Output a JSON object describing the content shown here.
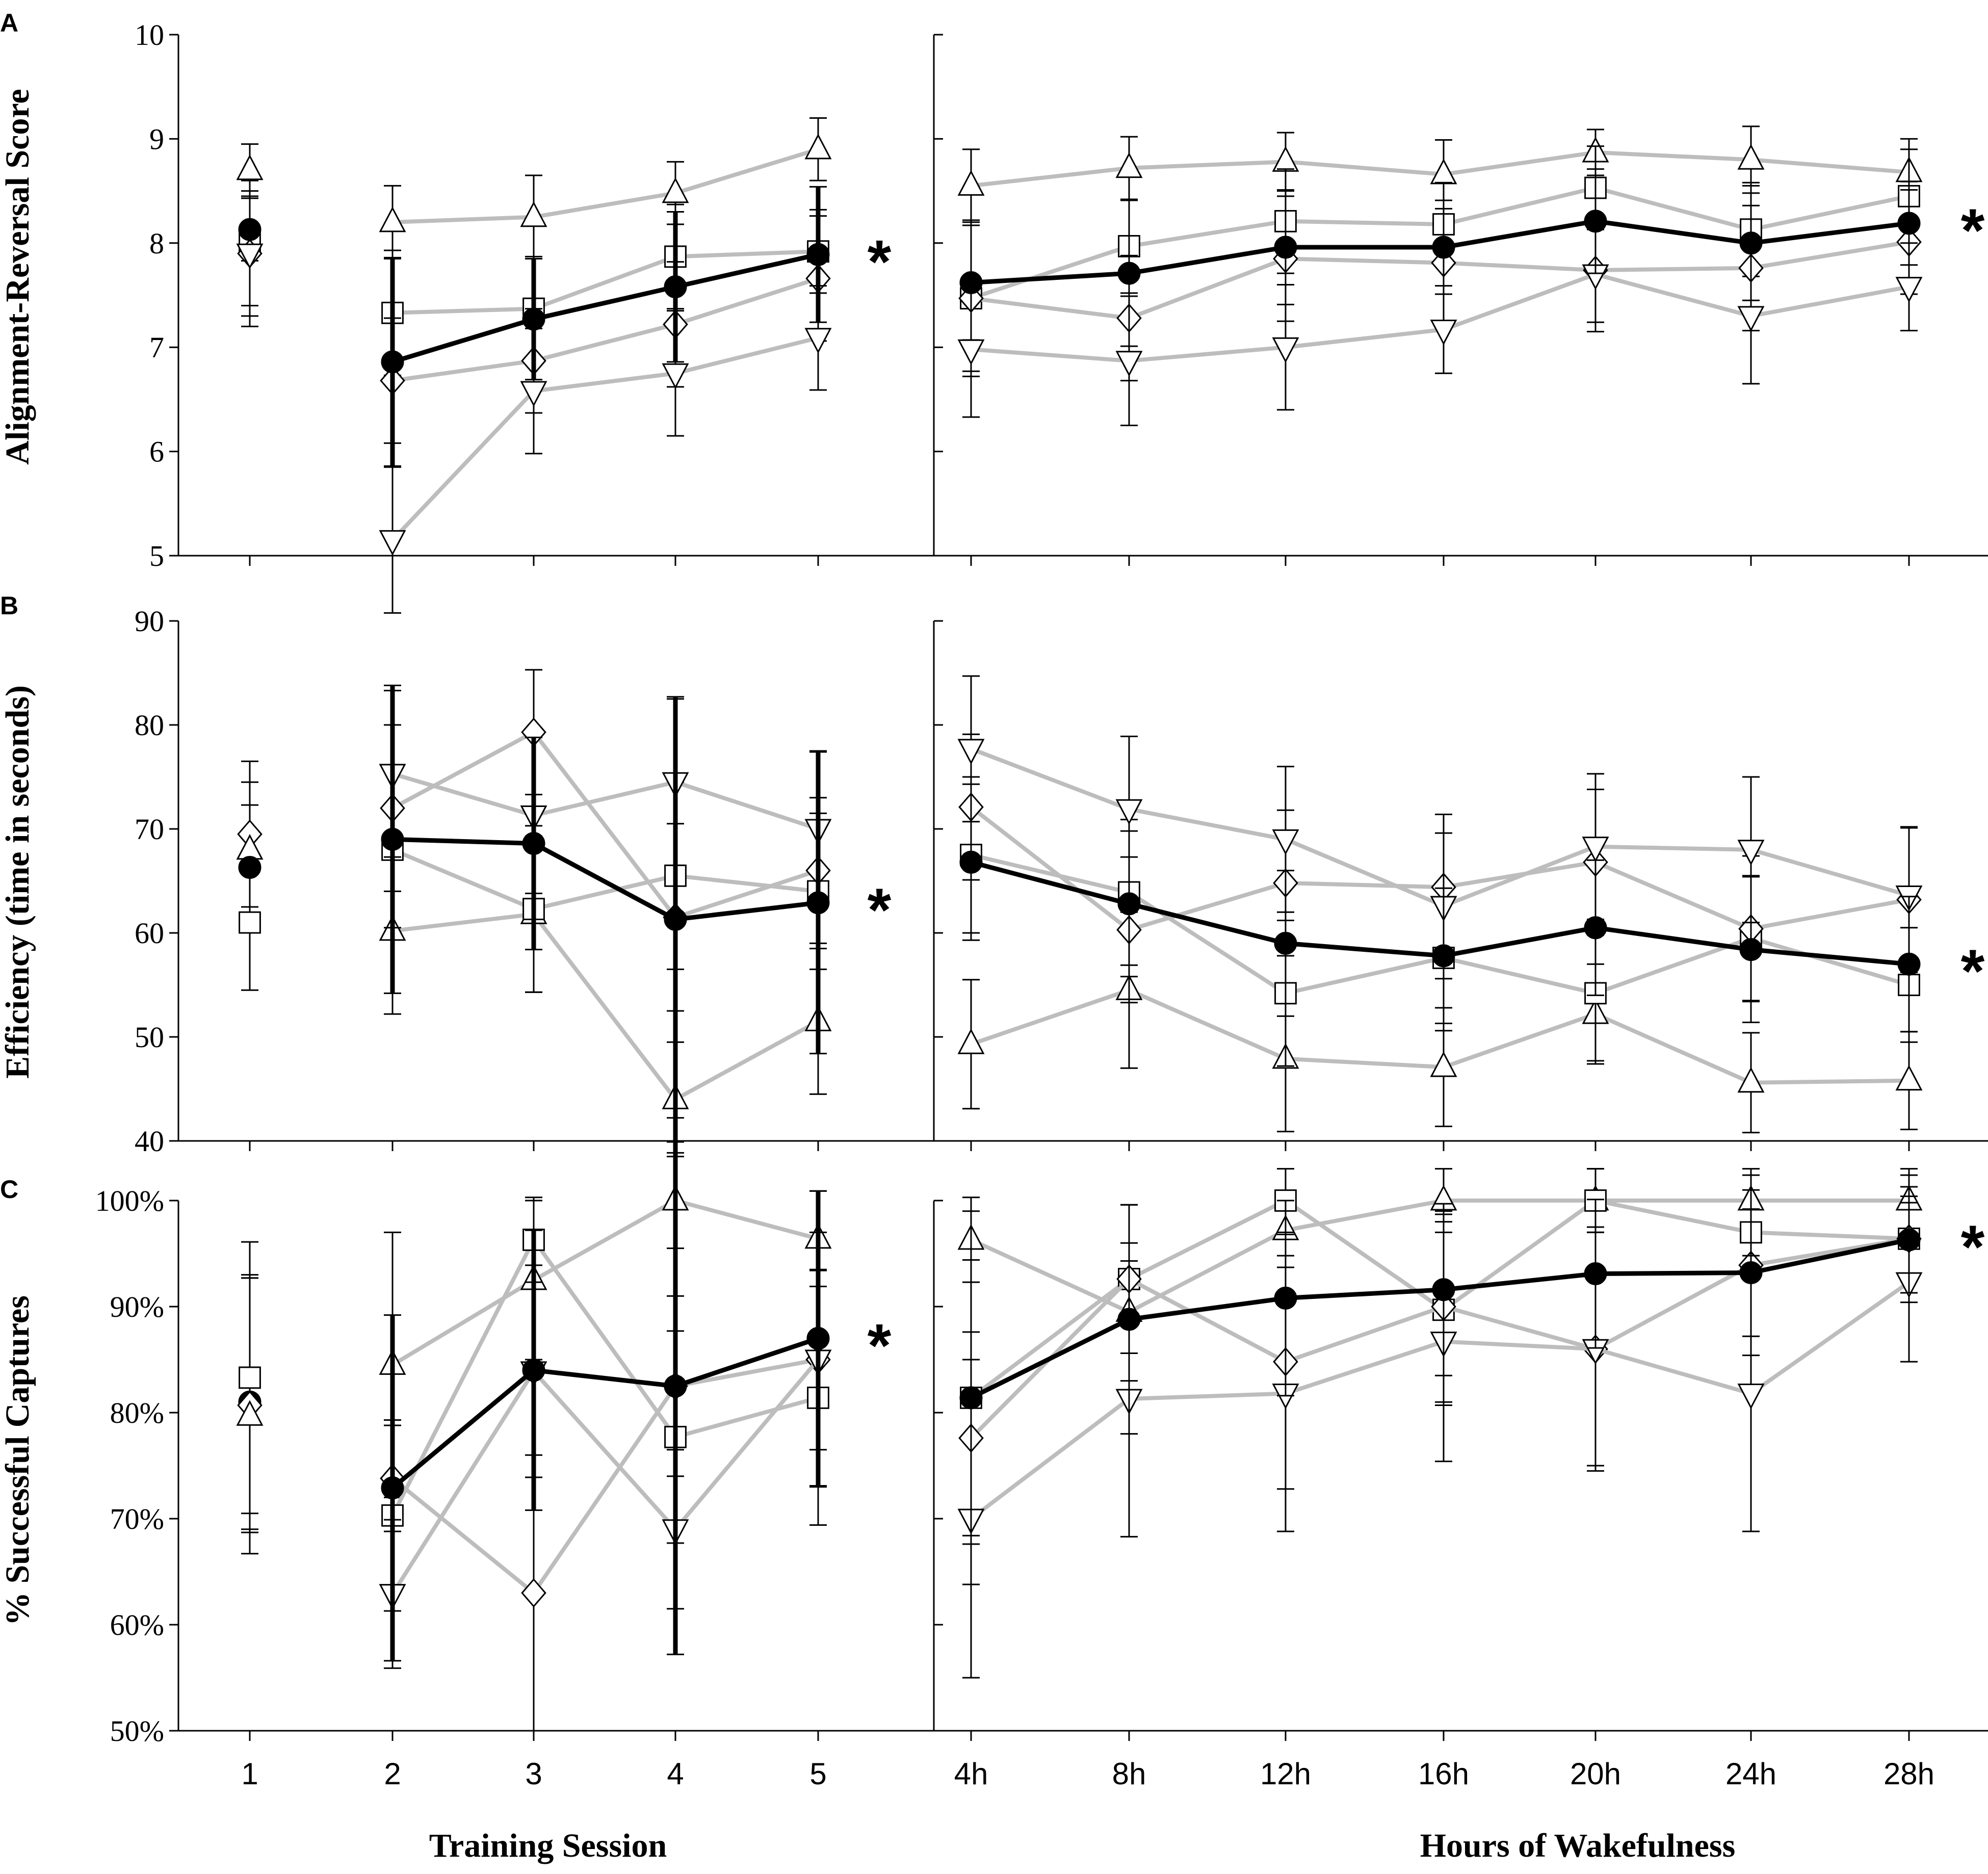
{
  "colors": {
    "mean": "#000000",
    "group": "#bdbdbd",
    "marker_fill": "#ffffff",
    "axis": "#000000"
  },
  "x_axis": {
    "training_label": "Training Session",
    "wake_label": "Hours of Wakefulness",
    "training_ticks": [
      "1",
      "2",
      "3",
      "4",
      "5"
    ],
    "wake_ticks": [
      "4h",
      "8h",
      "12h",
      "16h",
      "20h",
      "24h",
      "28h"
    ]
  },
  "chart_data": [
    {
      "type": "line",
      "panel": "A",
      "ylabel": "Alignment-Reversal Score",
      "ylim": [
        5,
        10
      ],
      "yticks": [
        "5",
        "6",
        "7",
        "8",
        "9",
        "10"
      ],
      "significance": [
        "*",
        "*"
      ],
      "baseline": [
        {
          "marker": "up",
          "value": 8.7,
          "err": 0.25
        },
        {
          "marker": "square",
          "value": 8.0,
          "err": 0.6
        },
        {
          "marker": "diamond",
          "value": 7.9,
          "err": 0.6
        },
        {
          "marker": "down",
          "value": 7.9,
          "err": 0.7
        },
        {
          "marker": "circle",
          "value": 8.13,
          "err": 0.3
        }
      ],
      "training": {
        "categories": [
          "2",
          "3",
          "4",
          "5"
        ],
        "series": [
          {
            "name": "up",
            "values": [
              8.2,
              8.25,
              8.48,
              8.9
            ],
            "err": [
              0.35,
              0.4,
              0.3,
              0.3
            ]
          },
          {
            "name": "square",
            "values": [
              7.33,
              7.37,
              7.87,
              7.92
            ],
            "err": [
              0.6,
              0.5,
              0.5,
              0.4
            ]
          },
          {
            "name": "diamond",
            "values": [
              6.68,
              6.87,
              7.22,
              7.66
            ],
            "err": [
              0.6,
              0.5,
              0.6,
              0.6
            ]
          },
          {
            "name": "down",
            "values": [
              5.15,
              6.58,
              6.75,
              7.09
            ],
            "err": [
              0.7,
              0.6,
              0.6,
              0.5
            ]
          },
          {
            "name": "mean",
            "values": [
              6.86,
              7.27,
              7.58,
              7.89
            ],
            "err": [
              1.0,
              0.58,
              0.72,
              0.65
            ]
          }
        ]
      },
      "wake": {
        "categories": [
          "4h",
          "8h",
          "12h",
          "16h",
          "20h",
          "24h",
          "28h"
        ],
        "series": [
          {
            "name": "up",
            "values": [
              8.55,
              8.72,
              8.78,
              8.66,
              8.87,
              8.8,
              8.68
            ],
            "err": [
              0.35,
              0.3,
              0.28,
              0.33,
              0.22,
              0.32,
              0.32
            ]
          },
          {
            "name": "square",
            "values": [
              7.47,
              7.97,
              8.21,
              8.18,
              8.53,
              8.13,
              8.45
            ],
            "err": [
              0.7,
              0.45,
              0.5,
              0.4,
              0.4,
              0.45,
              0.45
            ]
          },
          {
            "name": "diamond",
            "values": [
              7.47,
              7.28,
              7.85,
              7.81,
              7.74,
              7.76,
              8.01
            ],
            "err": [
              0.75,
              0.6,
              0.6,
              0.6,
              0.5,
              0.6,
              0.5
            ]
          },
          {
            "name": "down",
            "values": [
              6.98,
              6.87,
              7.0,
              7.17,
              7.7,
              7.3,
              7.58
            ],
            "err": [
              0.65,
              0.62,
              0.6,
              0.42,
              0.55,
              0.65,
              0.42
            ]
          },
          {
            "name": "mean",
            "values": [
              7.62,
              7.71,
              7.96,
              7.96,
              8.21,
              8.0,
              8.19
            ],
            "err": [
              0.55,
              0.7,
              0.55,
              0.45,
              0.5,
              0.55,
              0.4
            ]
          }
        ]
      }
    },
    {
      "type": "line",
      "panel": "B",
      "ylabel": "Efficiency (time in seconds)",
      "ylim": [
        40,
        90
      ],
      "yticks": [
        "40",
        "50",
        "60",
        "70",
        "80",
        "90"
      ],
      "significance": [
        "*",
        "*"
      ],
      "baseline": [
        {
          "marker": "diamond",
          "value": 69.5,
          "err": 7.0
        },
        {
          "marker": "up",
          "value": 68.0,
          "err": 6.5
        },
        {
          "marker": "circle",
          "value": 66.3,
          "err": 6.0
        },
        {
          "marker": "square",
          "value": 61.0,
          "err": 6.5
        }
      ],
      "training": {
        "categories": [
          "2",
          "3",
          "4",
          "5"
        ],
        "series": [
          {
            "name": "up",
            "values": [
              60.2,
              61.8,
              44.0,
              51.5
            ],
            "err": [
              8.0,
              7.5,
              5.5,
              7.0
            ]
          },
          {
            "name": "square",
            "values": [
              68.0,
              62.3,
              65.5,
              64.0
            ],
            "err": [
              7.5,
              8.0,
              9.0,
              7.5
            ]
          },
          {
            "name": "diamond",
            "values": [
              72.0,
              79.3,
              61.5,
              66.0
            ],
            "err": [
              8.0,
              6.0,
              9.0,
              7.0
            ]
          },
          {
            "name": "down",
            "values": [
              75.3,
              71.3,
              74.5,
              70.0
            ],
            "err": [
              8.0,
              7.5,
              8.0,
              7.5
            ]
          },
          {
            "name": "mean",
            "values": [
              69.0,
              68.6,
              61.3,
              62.9
            ],
            "err": [
              14.8,
              10.2,
              21.4,
              14.5
            ]
          }
        ]
      },
      "wake": {
        "categories": [
          "4h",
          "8h",
          "12h",
          "16h",
          "20h",
          "24h",
          "28h"
        ],
        "series": [
          {
            "name": "up",
            "values": [
              49.3,
              54.5,
              47.9,
              47.1,
              52.2,
              45.6,
              45.8
            ],
            "err": [
              6.2,
              7.5,
              7.0,
              5.7,
              4.8,
              4.8,
              4.7
            ]
          },
          {
            "name": "square",
            "values": [
              67.5,
              63.9,
              54.2,
              57.6,
              54.2,
              59.5,
              55.0
            ],
            "err": [
              7.5,
              7.0,
              7.0,
              7.0,
              6.5,
              6.0,
              5.5
            ]
          },
          {
            "name": "diamond",
            "values": [
              72.1,
              60.3,
              64.8,
              64.4,
              66.8,
              60.4,
              63.2
            ],
            "err": [
              7.0,
              7.0,
              7.0,
              7.0,
              7.0,
              7.0,
              7.0
            ]
          },
          {
            "name": "down",
            "values": [
              77.7,
              71.9,
              69.0,
              62.6,
              68.3,
              68.0,
              63.6
            ],
            "err": [
              7.0,
              7.0,
              7.0,
              7.0,
              7.0,
              7.0,
              6.5
            ]
          },
          {
            "name": "mean",
            "values": [
              66.8,
              62.8,
              59.0,
              57.8,
              60.5,
              58.4,
              57.0
            ],
            "err": [
              7.5,
              7.0,
              7.0,
              6.5,
              6.5,
              7.0,
              6.5
            ]
          }
        ]
      }
    },
    {
      "type": "line",
      "panel": "C",
      "ylabel": "% Successful Captures",
      "ylim": [
        50,
        100
      ],
      "yticks": [
        "50%",
        "60%",
        "70%",
        "80%",
        "90%",
        "100%"
      ],
      "significance": [
        "*",
        "*"
      ],
      "baseline": [
        {
          "marker": "square",
          "value": 83.3,
          "err": 12.8
        },
        {
          "marker": "circle",
          "value": 81.0,
          "err": 12.0
        },
        {
          "marker": "diamond",
          "value": 80.7,
          "err": 12.0
        },
        {
          "marker": "up",
          "value": 79.7,
          "err": 13.0
        }
      ],
      "training": {
        "categories": [
          "2",
          "3",
          "4",
          "5"
        ],
        "series": [
          {
            "name": "up",
            "values": [
              84.5,
              92.5,
              100.0,
              96.4
            ],
            "err": [
              12.5,
              7.5,
              4.5,
              4.5
            ]
          },
          {
            "name": "square",
            "values": [
              70.3,
              96.3,
              77.7,
              81.4
            ],
            "err": [
              9.0,
              4.0,
              10.0,
              12.0
            ]
          },
          {
            "name": "diamond",
            "values": [
              73.8,
              63.0,
              82.5,
              85.0
            ],
            "err": [
              5.0,
              13.0,
              8.5,
              12.0
            ]
          },
          {
            "name": "down",
            "values": [
              62.9,
              83.9,
              69.0,
              85.0
            ],
            "err": [
              7.0,
              10.0,
              7.5,
              8.5
            ]
          },
          {
            "name": "mean",
            "values": [
              72.9,
              84.0,
              82.5,
              87.0
            ],
            "err": [
              16.3,
              13.2,
              25.3,
              13.9
            ]
          }
        ]
      },
      "wake": {
        "categories": [
          "4h",
          "8h",
          "12h",
          "16h",
          "20h",
          "24h",
          "28h"
        ],
        "series": [
          {
            "name": "up",
            "values": [
              96.3,
              89.5,
              97.2,
              100.0,
              100.0,
              100.0,
              100.0
            ],
            "err": [
              4.0,
              6.5,
              3.5,
              3.0,
              3.0,
              3.0,
              3.0
            ]
          },
          {
            "name": "square",
            "values": [
              81.4,
              92.6,
              100.0,
              89.7,
              100.0,
              97.0,
              96.4
            ],
            "err": [
              13.0,
              7.0,
              3.0,
              9.0,
              3.0,
              4.0,
              4.0
            ]
          },
          {
            "name": "diamond",
            "values": [
              77.6,
              92.6,
              84.8,
              90.0,
              86.0,
              93.9,
              96.4
            ],
            "err": [
              10.0,
              7.0,
              12.0,
              9.0,
              11.0,
              8.5,
              6.0
            ]
          },
          {
            "name": "down",
            "values": [
              70.0,
              81.3,
              81.8,
              86.7,
              86.0,
              81.8,
              92.3
            ],
            "err": [
              15.0,
              13.0,
              13.0,
              11.3,
              11.5,
              13.0,
              7.5
            ]
          },
          {
            "name": "mean",
            "values": [
              81.4,
              88.8,
              90.8,
              91.6,
              93.1,
              93.2,
              96.3
            ],
            "err": [
              17.6,
              10.8,
              9.2,
              8.1,
              7.0,
              6.0,
              5.0
            ]
          }
        ]
      }
    }
  ]
}
